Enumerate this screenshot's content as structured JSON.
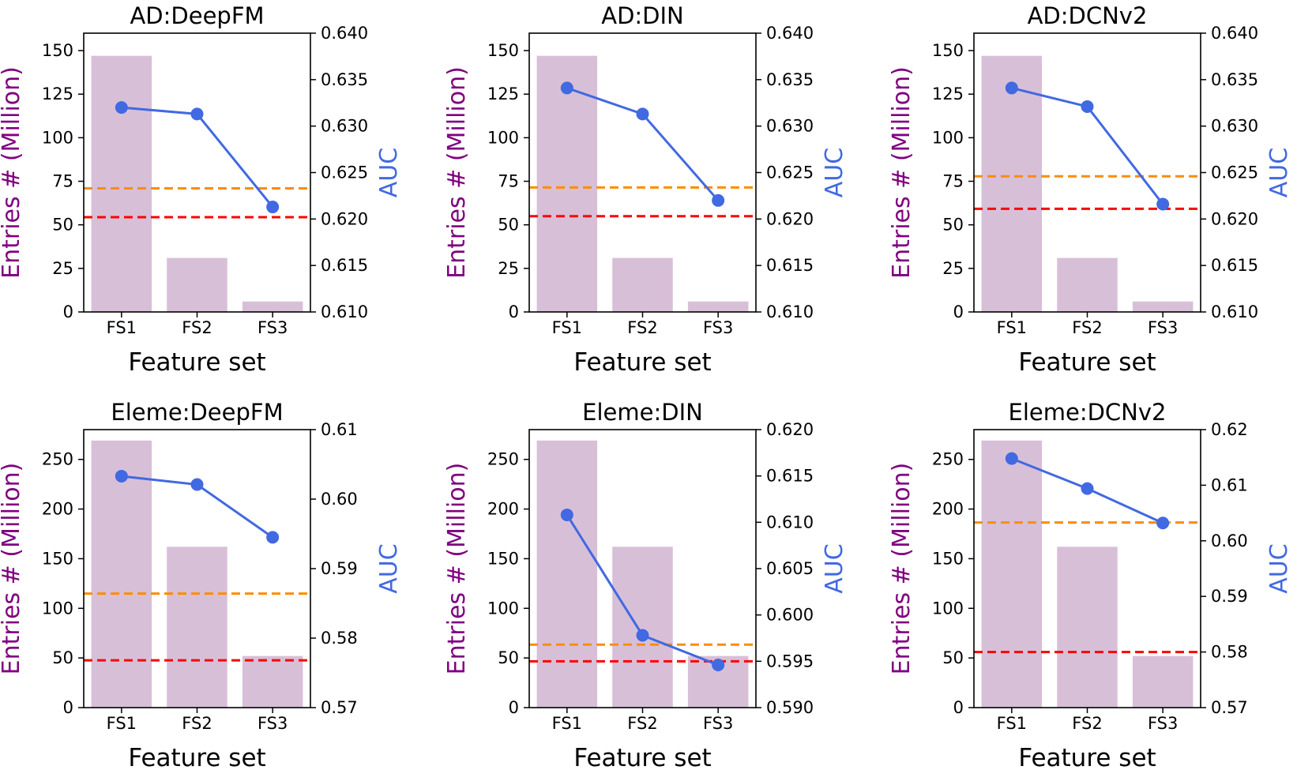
{
  "colors": {
    "bar": "#d8bfd8",
    "line": "#4169e1",
    "orange": "#ff8c00",
    "red": "#ff0000",
    "left_label": "#800080",
    "right_label": "#4169e1",
    "axis": "#000000"
  },
  "chart_data": [
    {
      "type": "bar",
      "title": "AD:DeepFM",
      "xlabel": "Feature set",
      "ylabel_left": "Entries # (Million)",
      "ylabel_right": "AUC",
      "categories": [
        "FS1",
        "FS2",
        "FS3"
      ],
      "bars": [
        147,
        31,
        6
      ],
      "line": [
        0.632,
        0.6313,
        0.6213
      ],
      "ylim_left": [
        0,
        160
      ],
      "ylim_right": [
        0.61,
        0.64
      ],
      "yticks_left": [
        "0",
        "25",
        "50",
        "75",
        "100",
        "125",
        "150"
      ],
      "yticks_right": [
        "0.610",
        "0.615",
        "0.620",
        "0.625",
        "0.630",
        "0.635",
        "0.640"
      ],
      "hline_orange": 0.6233,
      "hline_red": 0.6202
    },
    {
      "type": "bar",
      "title": "AD:DIN",
      "xlabel": "Feature set",
      "ylabel_left": "Entries # (Million)",
      "ylabel_right": "AUC",
      "categories": [
        "FS1",
        "FS2",
        "FS3"
      ],
      "bars": [
        147,
        31,
        6
      ],
      "line": [
        0.6341,
        0.6313,
        0.622
      ],
      "ylim_left": [
        0,
        160
      ],
      "ylim_right": [
        0.61,
        0.64
      ],
      "yticks_left": [
        "0",
        "25",
        "50",
        "75",
        "100",
        "125",
        "150"
      ],
      "yticks_right": [
        "0.610",
        "0.615",
        "0.620",
        "0.625",
        "0.630",
        "0.635",
        "0.640"
      ],
      "hline_orange": 0.6234,
      "hline_red": 0.6203
    },
    {
      "type": "bar",
      "title": "AD:DCNv2",
      "xlabel": "Feature set",
      "ylabel_left": "Entries # (Million)",
      "ylabel_right": "AUC",
      "categories": [
        "FS1",
        "FS2",
        "FS3"
      ],
      "bars": [
        147,
        31,
        6
      ],
      "line": [
        0.6341,
        0.6321,
        0.6216
      ],
      "ylim_left": [
        0,
        160
      ],
      "ylim_right": [
        0.61,
        0.64
      ],
      "yticks_left": [
        "0",
        "25",
        "50",
        "75",
        "100",
        "125",
        "150"
      ],
      "yticks_right": [
        "0.610",
        "0.615",
        "0.620",
        "0.625",
        "0.630",
        "0.635",
        "0.640"
      ],
      "hline_orange": 0.6246,
      "hline_red": 0.6211
    },
    {
      "type": "bar",
      "title": "Eleme:DeepFM",
      "xlabel": "Feature set",
      "ylabel_left": "Entries # (Million)",
      "ylabel_right": "AUC",
      "categories": [
        "FS1",
        "FS2",
        "FS3"
      ],
      "bars": [
        269,
        162,
        52
      ],
      "line": [
        0.6033,
        0.6021,
        0.5945
      ],
      "ylim_left": [
        0,
        280
      ],
      "ylim_right": [
        0.57,
        0.61
      ],
      "yticks_left": [
        "0",
        "50",
        "100",
        "150",
        "200",
        "250"
      ],
      "yticks_right": [
        "0.57",
        "0.58",
        "0.59",
        "0.60",
        "0.61"
      ],
      "hline_orange": 0.5864,
      "hline_red": 0.5768
    },
    {
      "type": "bar",
      "title": "Eleme:DIN",
      "xlabel": "Feature set",
      "ylabel_left": "Entries # (Million)",
      "ylabel_right": "AUC",
      "categories": [
        "FS1",
        "FS2",
        "FS3"
      ],
      "bars": [
        269,
        162,
        52
      ],
      "line": [
        0.6108,
        0.5978,
        0.5946
      ],
      "ylim_left": [
        0,
        280
      ],
      "ylim_right": [
        0.59,
        0.62
      ],
      "yticks_left": [
        "0",
        "50",
        "100",
        "150",
        "200",
        "250"
      ],
      "yticks_right": [
        "0.590",
        "0.595",
        "0.600",
        "0.605",
        "0.610",
        "0.615",
        "0.620"
      ],
      "hline_orange": 0.5968,
      "hline_red": 0.595
    },
    {
      "type": "bar",
      "title": "Eleme:DCNv2",
      "xlabel": "Feature set",
      "ylabel_left": "Entries # (Million)",
      "ylabel_right": "AUC",
      "categories": [
        "FS1",
        "FS2",
        "FS3"
      ],
      "bars": [
        269,
        162,
        52
      ],
      "line": [
        0.6148,
        0.6094,
        0.6032
      ],
      "ylim_left": [
        0,
        280
      ],
      "ylim_right": [
        0.57,
        0.62
      ],
      "yticks_left": [
        "0",
        "50",
        "100",
        "150",
        "200",
        "250"
      ],
      "yticks_right": [
        "0.57",
        "0.58",
        "0.59",
        "0.60",
        "0.61",
        "0.62"
      ],
      "hline_orange": 0.6033,
      "hline_red": 0.58
    }
  ]
}
